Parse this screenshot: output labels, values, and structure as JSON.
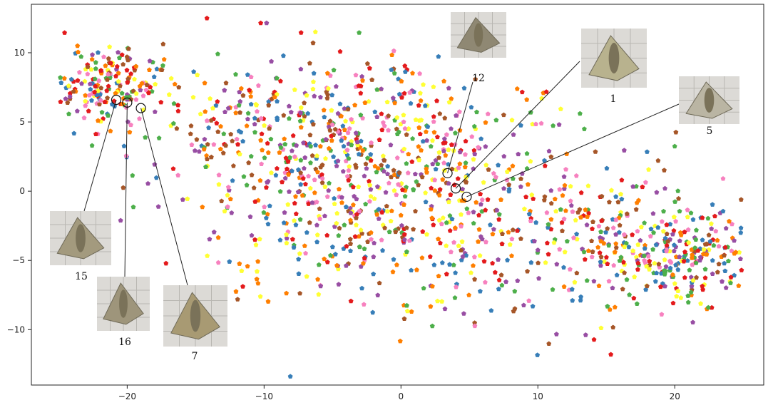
{
  "chart_data": {
    "type": "scatter",
    "title": "",
    "xlabel": "",
    "ylabel": "",
    "xlim": [
      -27,
      26.5
    ],
    "ylim": [
      -14,
      13.5
    ],
    "xticks": [
      -20,
      -10,
      0,
      10,
      20
    ],
    "yticks": [
      10,
      5,
      0,
      -5,
      -10
    ],
    "xtick_labels": [
      "−20",
      "−10",
      "0",
      "10",
      "20"
    ],
    "ytick_labels": [
      "10",
      "5",
      "0",
      "−5",
      "−10"
    ],
    "grid": false,
    "legend": "none",
    "marker": "pentagon",
    "palette": [
      "#e41a1c",
      "#377eb8",
      "#4daf4a",
      "#ff7f00",
      "#ffff33",
      "#a65628",
      "#f781bf",
      "#984ea3"
    ],
    "point_count": 1600,
    "regions": [
      {
        "cx": -21.5,
        "cy": 7.5,
        "sx": 2.0,
        "sy": 1.4,
        "weight": 0.12
      },
      {
        "cx": -8,
        "cy": 4,
        "sx": 5.5,
        "sy": 3.0,
        "weight": 0.22
      },
      {
        "cx": -5,
        "cy": -2,
        "sx": 5.0,
        "sy": 3.5,
        "weight": 0.14
      },
      {
        "cx": 2,
        "cy": 3,
        "sx": 4.5,
        "sy": 3.0,
        "weight": 0.16
      },
      {
        "cx": 6,
        "cy": -4,
        "sx": 4.0,
        "sy": 3.5,
        "weight": 0.1
      },
      {
        "cx": 15,
        "cy": -3,
        "sx": 4.5,
        "sy": 2.6,
        "weight": 0.14
      },
      {
        "cx": 21,
        "cy": -5,
        "sx": 2.8,
        "sy": 1.6,
        "weight": 0.12
      }
    ],
    "highlighted": [
      {
        "label": "15",
        "x": -20.8,
        "y": 6.6,
        "thumb_tone": "#a39a7e"
      },
      {
        "label": "16",
        "x": -20.0,
        "y": 6.4,
        "thumb_tone": "#9e957b"
      },
      {
        "label": "7",
        "x": -19.0,
        "y": 6.0,
        "thumb_tone": "#a89a73"
      },
      {
        "label": "12",
        "x": 3.4,
        "y": 1.3,
        "thumb_tone": "#8f8873"
      },
      {
        "label": "1",
        "x": 4.0,
        "y": 0.2,
        "thumb_tone": "#b8b28e"
      },
      {
        "label": "5",
        "x": 4.8,
        "y": -0.4,
        "thumb_tone": "#bab5a3"
      }
    ]
  }
}
